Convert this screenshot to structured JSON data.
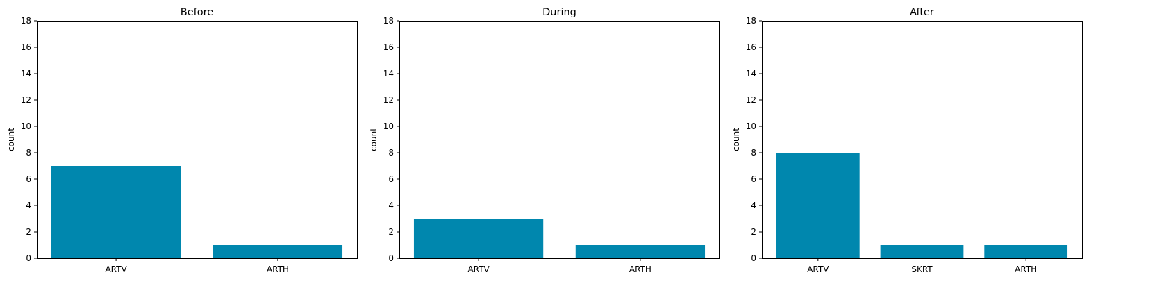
{
  "colors": {
    "bar": "#0087ae"
  },
  "chart_data": [
    {
      "type": "bar",
      "title": "Before",
      "xlabel": "",
      "ylabel": "count",
      "categories": [
        "ARTV",
        "ARTH"
      ],
      "values": [
        7,
        1
      ],
      "ylim": [
        0,
        18
      ],
      "yticks": [
        0,
        2,
        4,
        6,
        8,
        10,
        12,
        14,
        16,
        18
      ],
      "grid": false
    },
    {
      "type": "bar",
      "title": "During",
      "xlabel": "",
      "ylabel": "count",
      "categories": [
        "ARTV",
        "ARTH"
      ],
      "values": [
        3,
        1
      ],
      "ylim": [
        0,
        18
      ],
      "yticks": [
        0,
        2,
        4,
        6,
        8,
        10,
        12,
        14,
        16,
        18
      ],
      "grid": false
    },
    {
      "type": "bar",
      "title": "After",
      "xlabel": "",
      "ylabel": "count",
      "categories": [
        "ARTV",
        "SKRT",
        "ARTH"
      ],
      "values": [
        8,
        1,
        1
      ],
      "ylim": [
        0,
        18
      ],
      "yticks": [
        0,
        2,
        4,
        6,
        8,
        10,
        12,
        14,
        16,
        18
      ],
      "grid": false
    }
  ]
}
